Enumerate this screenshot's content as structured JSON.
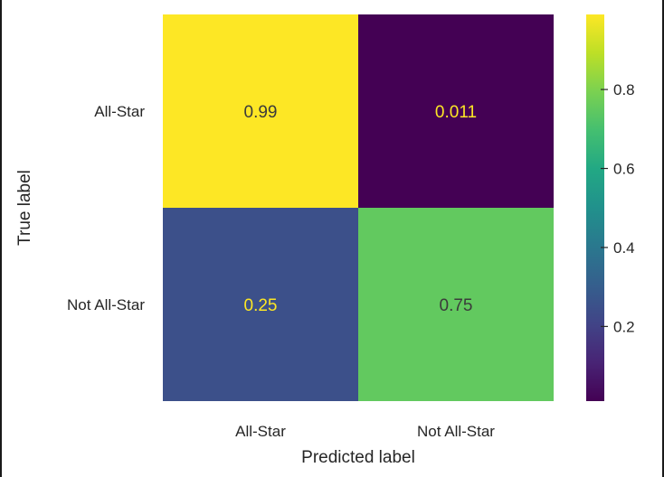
{
  "chart_data": {
    "type": "heatmap",
    "title": "",
    "xlabel": "Predicted label",
    "ylabel": "True label",
    "x_categories": [
      "All-Star",
      "Not All-Star"
    ],
    "y_categories": [
      "All-Star",
      "Not All-Star"
    ],
    "values": [
      [
        0.99,
        0.011
      ],
      [
        0.25,
        0.75
      ]
    ],
    "cell_labels": [
      [
        "0.99",
        "0.011"
      ],
      [
        "0.25",
        "0.75"
      ]
    ],
    "colormap": "viridis",
    "colorbar": {
      "range": [
        0.011,
        0.99
      ],
      "ticks": [
        0.2,
        0.4,
        0.6,
        0.8
      ],
      "tick_labels": [
        "0.2",
        "0.4",
        "0.6",
        "0.8"
      ]
    },
    "grid": false,
    "colors": {
      "viridis_low": "#440154",
      "viridis_high": "#fde725",
      "text_on_dark": "#fde725",
      "text_on_light": "#3b3b3b",
      "axis_text": "#262626"
    }
  }
}
